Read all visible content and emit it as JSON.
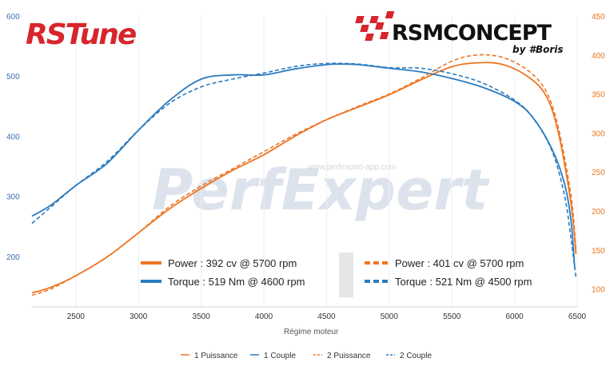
{
  "logos": {
    "left": "RSTune",
    "right": "RSMCONCEPT",
    "right_sub": "by #Boris",
    "watermark": "PerfExpert",
    "watermark_url": "www.perfexpert-app.com"
  },
  "colors": {
    "power": "#ee7524",
    "torque": "#2b7bbf",
    "left_axis": "#3a6fb0",
    "right_axis": "#e8761e"
  },
  "summary": {
    "run1_power": "Power : 392 cv @ 5700 rpm",
    "run1_torque": "Torque : 519 Nm @ 4600 rpm",
    "run2_power": "Power : 401 cv @ 5700 rpm",
    "run2_torque": "Torque : 521 Nm @ 4500 rpm"
  },
  "legend": [
    "1 Puissance",
    "1 Couple",
    "2 Puissance",
    "2 Couple"
  ],
  "chart_data": {
    "type": "line",
    "title": "",
    "xlabel": "Régime moteur",
    "ylabel": "",
    "xlim": [
      2150,
      6500
    ],
    "x_ticks": [
      2500,
      3000,
      3500,
      4000,
      4500,
      5000,
      5500,
      6000,
      6500
    ],
    "y_left_ticks": [
      200,
      300,
      400,
      500,
      600
    ],
    "y_right_ticks": [
      100,
      150,
      200,
      250,
      300,
      350,
      400,
      450
    ],
    "y_left_range": [
      116,
      600
    ],
    "y_right_range": [
      77,
      450
    ],
    "grid": "vertical",
    "legend_position": "bottom",
    "series": [
      {
        "name": "1 Puissance",
        "axis": "right",
        "dashed": false,
        "color": "#ee7524",
        "x": [
          2150,
          2300,
          2500,
          2750,
          3000,
          3250,
          3500,
          3750,
          4000,
          4250,
          4500,
          4750,
          5000,
          5250,
          5500,
          5700,
          5900,
          6100,
          6250,
          6350,
          6450,
          6490
        ],
        "y": [
          95,
          102,
          117,
          141,
          172,
          203,
          229,
          252,
          272,
          296,
          317,
          333,
          349,
          368,
          385,
          390,
          388,
          373,
          348,
          300,
          210,
          145
        ]
      },
      {
        "name": "1 Couple",
        "axis": "left",
        "dashed": false,
        "color": "#2b7bbf",
        "x": [
          2150,
          2300,
          2500,
          2750,
          3000,
          3250,
          3500,
          3750,
          4000,
          4250,
          4500,
          4600,
          4750,
          5000,
          5250,
          5500,
          5750,
          6000,
          6150,
          6300,
          6400,
          6450,
          6480
        ],
        "y": [
          267,
          285,
          318,
          355,
          410,
          460,
          495,
          502,
          502,
          512,
          519,
          520,
          519,
          513,
          507,
          496,
          481,
          458,
          430,
          378,
          320,
          260,
          180
        ]
      },
      {
        "name": "2 Puissance",
        "axis": "right",
        "dashed": true,
        "color": "#ee7524",
        "x": [
          2150,
          2300,
          2500,
          2750,
          3000,
          3250,
          3500,
          3750,
          4000,
          4250,
          4500,
          4750,
          5000,
          5250,
          5500,
          5700,
          5900,
          6100,
          6250,
          6350,
          6450,
          6490
        ],
        "y": [
          92,
          100,
          117,
          141,
          172,
          206,
          232,
          254,
          276,
          298,
          317,
          334,
          350,
          370,
          392,
          400,
          397,
          381,
          354,
          306,
          220,
          150
        ]
      },
      {
        "name": "2 Couple",
        "axis": "left",
        "dashed": true,
        "color": "#2b7bbf",
        "x": [
          2150,
          2300,
          2500,
          2750,
          3000,
          3250,
          3500,
          3750,
          4000,
          4250,
          4500,
          4750,
          5000,
          5250,
          5500,
          5750,
          6000,
          6150,
          6300,
          6400,
          6450,
          6490
        ],
        "y": [
          255,
          282,
          318,
          358,
          410,
          455,
          482,
          495,
          505,
          516,
          521,
          520,
          514,
          513,
          504,
          488,
          460,
          430,
          375,
          300,
          230,
          165
        ]
      }
    ]
  }
}
